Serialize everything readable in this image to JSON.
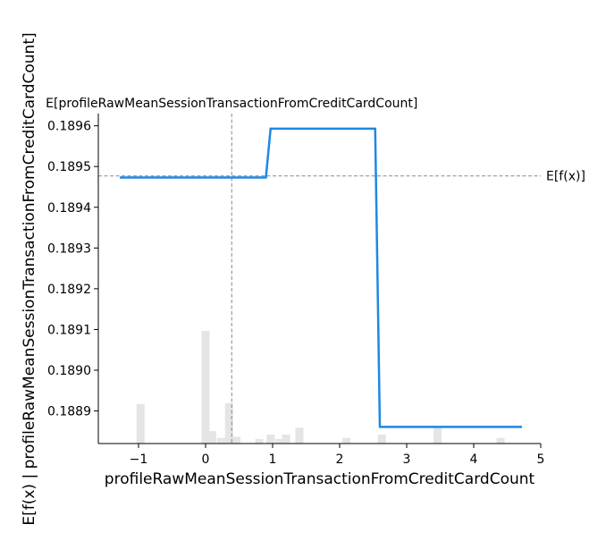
{
  "chart_data": {
    "type": "line",
    "title": "",
    "xlabel": "profileRawMeanSessionTransactionFromCreditCardCount",
    "ylabel": "E[f(x) | profileRawMeanSessionTransactionFromCreditCardCount]",
    "top_label": "E[profileRawMeanSessionTransactionFromCreditCardCount]",
    "expected_value_label": "E[f(x)]",
    "expected_value": 0.189477,
    "feature_mean": 0.39,
    "xlim": [
      -1.6,
      5.0
    ],
    "ylim": [
      0.18882,
      0.18963
    ],
    "xticks": [
      -1,
      0,
      1,
      2,
      3,
      4,
      5
    ],
    "xtick_labels": [
      "−1",
      "0",
      "1",
      "2",
      "3",
      "4",
      "5"
    ],
    "yticks": [
      0.1889,
      0.189,
      0.1891,
      0.1892,
      0.1893,
      0.1894,
      0.1895,
      0.1896
    ],
    "ytick_labels": [
      "0.1889",
      "0.1890",
      "0.1891",
      "0.1892",
      "0.1893",
      "0.1894",
      "0.1895",
      "0.1896"
    ],
    "grid": false,
    "line_color": "#1e88e5",
    "hist_color": "#e5e5e5",
    "ref_line_color": "#888888",
    "series": [
      {
        "x": [
          -1.28,
          0.9,
          0.97,
          2.53,
          2.6,
          4.72
        ],
        "y": [
          0.189473,
          0.189473,
          0.189593,
          0.189593,
          0.188861,
          0.188861
        ]
      }
    ],
    "histogram": {
      "bin_centers": [
        -0.97,
        0.0,
        0.1,
        0.23,
        0.35,
        0.46,
        0.8,
        0.97,
        1.1,
        1.2,
        1.4,
        2.1,
        2.63,
        3.46,
        4.4
      ],
      "fractions": [
        0.35,
        1.0,
        0.11,
        0.05,
        0.36,
        0.06,
        0.04,
        0.08,
        0.04,
        0.08,
        0.14,
        0.05,
        0.08,
        0.15,
        0.05
      ]
    }
  }
}
